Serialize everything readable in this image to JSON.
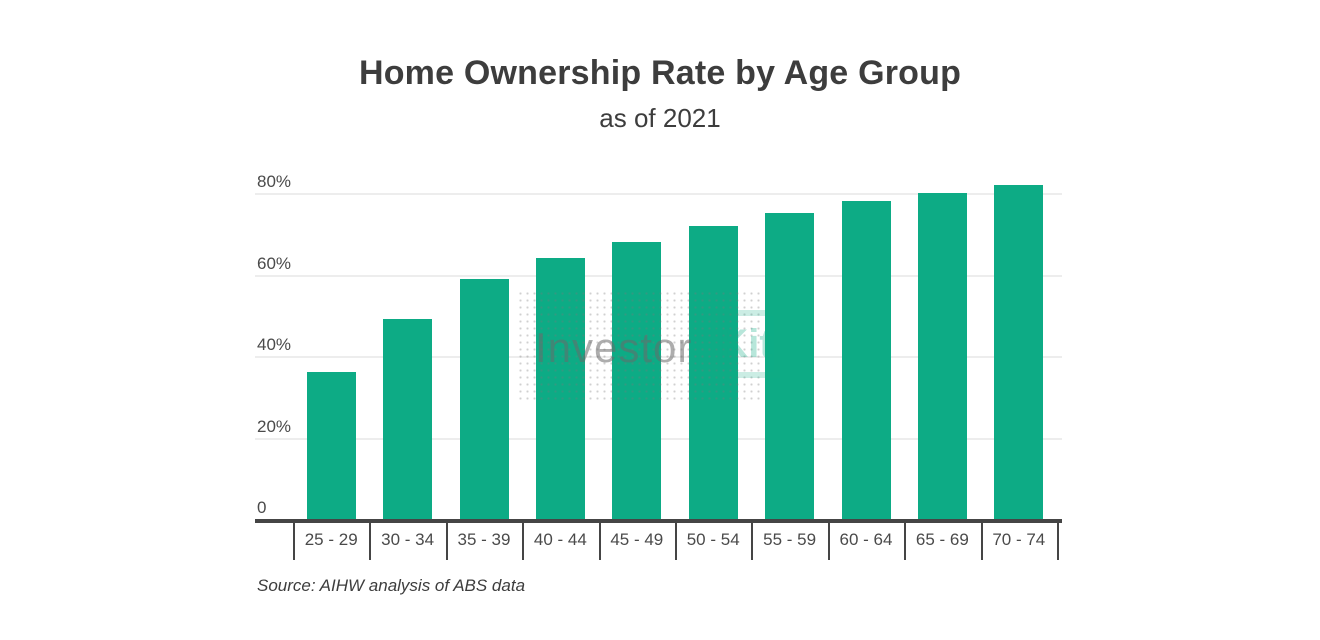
{
  "page": {
    "background_color": "#ffffff"
  },
  "header": {
    "title": "Home Ownership Rate by Age Group",
    "subtitle": "as of 2021"
  },
  "footer": {
    "source": "Source: AIHW analysis of ABS data"
  },
  "watermark": {
    "text_part": "Investor",
    "boxed_part": "Kit"
  },
  "chart_data": {
    "type": "bar",
    "title": "Home Ownership Rate by Age Group",
    "subtitle": "as of 2021",
    "categories": [
      "25 - 29",
      "30 - 34",
      "35 - 39",
      "40 - 44",
      "45 - 49",
      "50 - 54",
      "55 - 59",
      "60 - 64",
      "65 - 69",
      "70 - 74"
    ],
    "values": [
      36,
      49,
      59,
      64,
      68,
      72,
      75,
      78,
      80,
      82
    ],
    "unit": "%",
    "xlabel": "",
    "ylabel": "",
    "y_ticks": [
      {
        "label": "80%",
        "value": 80
      },
      {
        "label": "60%",
        "value": 60
      },
      {
        "label": "40%",
        "value": 40
      },
      {
        "label": "20%",
        "value": 20
      },
      {
        "label": "0",
        "value": 0
      }
    ],
    "ylim": [
      0,
      86
    ],
    "grid": "horizontal",
    "legend": "none",
    "source": "Source: AIHW analysis of ABS data",
    "colors": {
      "bar": "#0dab85",
      "axis": "#454545",
      "gridline": "#ededed",
      "text": "#3d3d3d",
      "tick_text": "#4a4a4a",
      "watermark_gray": "rgba(105,105,105,0.55)",
      "watermark_mint": "rgba(16,171,133,0.30)"
    }
  }
}
